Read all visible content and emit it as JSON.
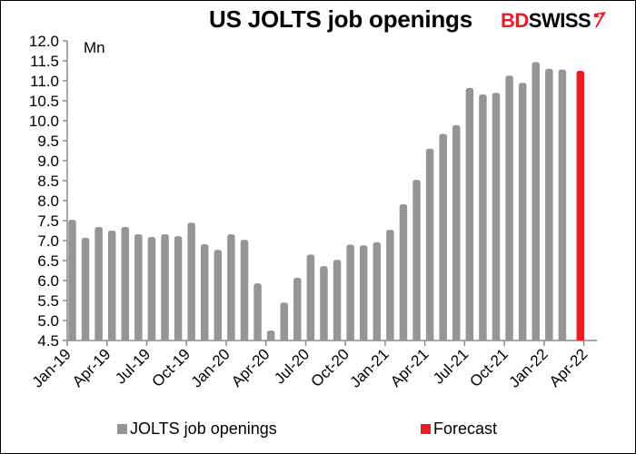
{
  "header": {
    "title": "US JOLTS job openings",
    "logo_primary": "BD",
    "logo_secondary": "SWISS"
  },
  "colors": {
    "actual": "#939598",
    "forecast": "#ED1C24",
    "axis": "#8C8C8C"
  },
  "legend": [
    {
      "label": "JOLTS job openings",
      "color": "#939598"
    },
    {
      "label": "Forecast",
      "color": "#ED1C24"
    }
  ],
  "chart_data": {
    "type": "bar",
    "title": "US JOLTS job openings",
    "xlabel": "",
    "ylabel": "Mn",
    "ylim": [
      4.5,
      12.0
    ],
    "ytick_step": 0.5,
    "yticks": [
      "4.5",
      "5.0",
      "5.5",
      "6.0",
      "6.5",
      "7.0",
      "7.5",
      "8.0",
      "8.5",
      "9.0",
      "9.5",
      "10.0",
      "10.5",
      "11.0",
      "11.5",
      "12.0"
    ],
    "xtick_labels": [
      "Jan-19",
      "Apr-19",
      "Jul-19",
      "Oct-19",
      "Jan-20",
      "Apr-20",
      "Jul-20",
      "Oct-20",
      "Jan-21",
      "Apr-21",
      "Jul-21",
      "Oct-21",
      "Jan-22",
      "Apr-22"
    ],
    "grid": false,
    "legend_position": "bottom",
    "categories": [
      "Jan-19",
      "Feb-19",
      "Mar-19",
      "Apr-19",
      "May-19",
      "Jun-19",
      "Jul-19",
      "Aug-19",
      "Sep-19",
      "Oct-19",
      "Nov-19",
      "Dec-19",
      "Jan-20",
      "Feb-20",
      "Mar-20",
      "Apr-20",
      "May-20",
      "Jun-20",
      "Jul-20",
      "Aug-20",
      "Sep-20",
      "Oct-20",
      "Nov-20",
      "Dec-20",
      "Jan-21",
      "Feb-21",
      "Mar-21",
      "Apr-21",
      "May-21",
      "Jun-21",
      "Jul-21",
      "Aug-21",
      "Sep-21",
      "Oct-21",
      "Nov-21",
      "Dec-21",
      "Jan-22",
      "Feb-22",
      "Mar-22"
    ],
    "series": [
      {
        "name": "JOLTS job openings",
        "color": "#939598",
        "values": [
          7.52,
          7.07,
          7.34,
          7.25,
          7.34,
          7.16,
          7.09,
          7.16,
          7.11,
          7.45,
          6.91,
          6.77,
          7.16,
          7.02,
          5.93,
          4.75,
          5.45,
          6.07,
          6.65,
          6.36,
          6.52,
          6.9,
          6.88,
          6.96,
          7.27,
          7.91,
          8.52,
          9.3,
          9.67,
          9.89,
          10.82,
          10.66,
          10.7,
          11.13,
          10.95,
          11.47,
          11.3,
          11.28,
          null
        ]
      },
      {
        "name": "Forecast",
        "color": "#ED1C24",
        "values": [
          null,
          null,
          null,
          null,
          null,
          null,
          null,
          null,
          null,
          null,
          null,
          null,
          null,
          null,
          null,
          null,
          null,
          null,
          null,
          null,
          null,
          null,
          null,
          null,
          null,
          null,
          null,
          null,
          null,
          null,
          null,
          null,
          null,
          null,
          null,
          null,
          null,
          null,
          11.25
        ]
      }
    ]
  }
}
